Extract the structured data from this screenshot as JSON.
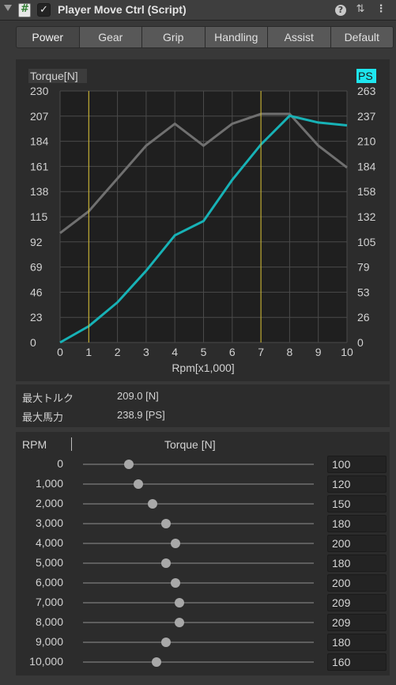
{
  "header": {
    "title": "Player Move Ctrl (Script)",
    "enabled_check": "✓",
    "help_glyph": "?",
    "preset_glyph": "⇅",
    "menu_glyph": "⋮"
  },
  "tabs": [
    "Power",
    "Gear",
    "Grip",
    "Handling",
    "Assist",
    "Default"
  ],
  "active_tab": 0,
  "chart_data": {
    "type": "line",
    "title": "",
    "xlabel": "Rpm[x1,000]",
    "ylabel_left": "Torque[N]",
    "ylabel_right": "PS",
    "x": [
      0,
      1,
      2,
      3,
      4,
      5,
      6,
      7,
      8,
      9,
      10
    ],
    "x_ticks": [
      "0",
      "1",
      "2",
      "3",
      "4",
      "5",
      "6",
      "7",
      "8",
      "9",
      "10"
    ],
    "y_left_ticks": [
      "230",
      "207",
      "184",
      "161",
      "138",
      "115",
      "92",
      "69",
      "46",
      "23",
      "0"
    ],
    "y_right_ticks": [
      "263",
      "237",
      "210",
      "184",
      "158",
      "132",
      "105",
      "79",
      "53",
      "26",
      "0"
    ],
    "ylim_left": [
      0,
      230
    ],
    "ylim_right": [
      0,
      263
    ],
    "grid": true,
    "vertical_markers": [
      1,
      7
    ],
    "series": [
      {
        "axis": "left",
        "color": "#707070",
        "values": [
          100,
          120,
          150,
          180,
          200,
          180,
          200,
          209,
          209,
          180,
          160
        ]
      },
      {
        "axis": "right",
        "color": "#17b2b6",
        "values": [
          0,
          17,
          42,
          75,
          112,
          127,
          170,
          207,
          237,
          230,
          227
        ]
      }
    ],
    "colors": {
      "plot_bg": "#1f1f1f",
      "grid": "#4a4a4a",
      "marker": "#d8c030",
      "ps_badge": "#1ee6ef"
    }
  },
  "stats": {
    "max_torque_label": "最大トルク",
    "max_torque_value": "209.0 [N]",
    "max_power_label": "最大馬力",
    "max_power_value": "238.9 [PS]"
  },
  "table": {
    "col_rpm": "RPM",
    "col_torque": "Torque [N]",
    "slider_max": 500,
    "rows": [
      {
        "rpm": "0",
        "value": "100"
      },
      {
        "rpm": "1,000",
        "value": "120"
      },
      {
        "rpm": "2,000",
        "value": "150"
      },
      {
        "rpm": "3,000",
        "value": "180"
      },
      {
        "rpm": "4,000",
        "value": "200"
      },
      {
        "rpm": "5,000",
        "value": "180"
      },
      {
        "rpm": "6,000",
        "value": "200"
      },
      {
        "rpm": "7,000",
        "value": "209"
      },
      {
        "rpm": "8,000",
        "value": "209"
      },
      {
        "rpm": "9,000",
        "value": "180"
      },
      {
        "rpm": "10,000",
        "value": "160"
      }
    ]
  }
}
